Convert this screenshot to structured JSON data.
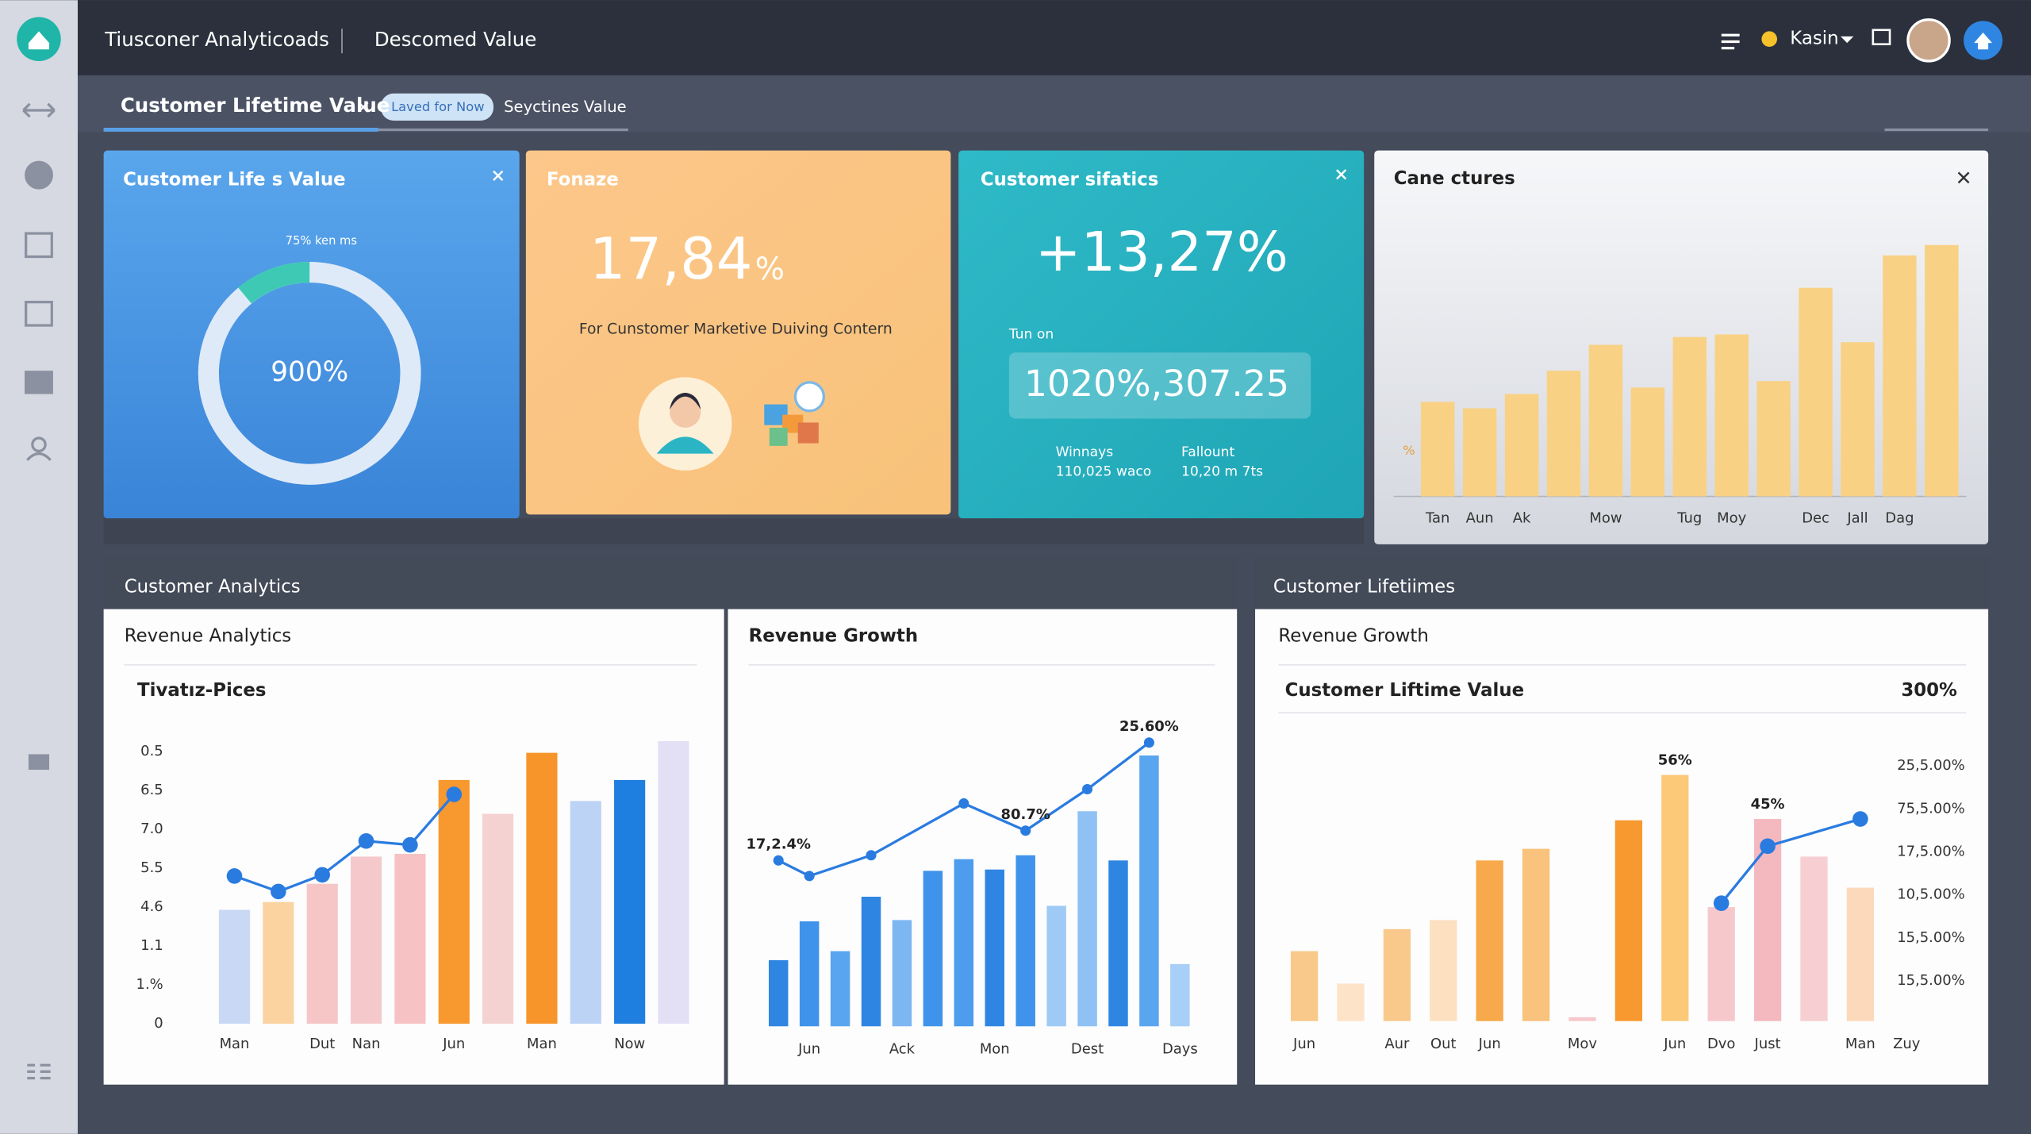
{
  "header": {
    "app_title": "Tiusconer Analyticoads",
    "section": "Descomed Value",
    "user": "Kasin"
  },
  "tabs": {
    "active": "Customer Lifetime Value",
    "pill": "Laved for Now",
    "other": "Seyctines Value"
  },
  "cards": [
    {
      "title": "Customer Life s Value",
      "caption": "75% ken ms",
      "center": "900%"
    },
    {
      "title": "Fonaze",
      "value": "17,84",
      "value_unit": "%",
      "subtitle": "For Cunstomer Marketive Duiving Contern"
    },
    {
      "title": "Customer sifatics",
      "value": "+13,27%",
      "label": "Tun on",
      "box": "1020%,307.25",
      "stats": [
        {
          "label": "Winnays",
          "value": "110,025 waco"
        },
        {
          "label": "Fallount",
          "value": "10,20 m 7ts"
        }
      ]
    },
    {
      "title": "Cane ctures",
      "chart": {
        "type": "bar",
        "axis_label": "%",
        "categories": [
          "Tan",
          "Aun",
          "Ak",
          null,
          "Mow",
          null,
          "Tug",
          "Moy",
          null,
          "Dec",
          "Jall",
          "Dag",
          null
        ],
        "values": [
          73,
          68,
          79,
          97,
          117,
          84,
          123,
          125,
          89,
          161,
          119,
          186,
          194
        ],
        "color": "#f9d184",
        "ylim": [
          0,
          200
        ]
      }
    }
  ],
  "panels": [
    {
      "title": "Customer Analytics",
      "cards": [
        {
          "title": "Revenue Analytics",
          "subtitle": "Tivatız-Pices",
          "type": "bar",
          "categories": [
            "Man",
            null,
            "Dut",
            "Nan",
            null,
            "Jun",
            null,
            "Man",
            null,
            "Now",
            null
          ],
          "values": [
            2.93,
            3.13,
            3.6,
            4.3,
            4.37,
            6.27,
            5.4,
            6.97,
            5.73,
            6.27,
            7.27
          ],
          "colors": [
            "#c9d9f5",
            "#fbd3a0",
            "#f6c6c6",
            "#f5c9cc",
            "#f6c2c4",
            "#f7992e",
            "#f5d2d2",
            "#f7952a",
            "#bcd3f5",
            "#1f7fe0",
            "#e3e0f5"
          ],
          "ylim": [
            0,
            7
          ],
          "ytick_labels": [
            "0.5",
            "6.5",
            "7.0",
            "5.5",
            "4.6",
            "1.1",
            "1.%",
            "0"
          ],
          "line": {
            "color": "#2a7be0",
            "x": [
              0,
              1,
              2,
              3,
              4,
              5
            ],
            "values": [
              3.8,
              3.4,
              3.83,
              4.7,
              4.6,
              5.9
            ]
          }
        },
        {
          "title": "Revenue Growth",
          "type": "bar",
          "categories": [
            null,
            "Jun",
            null,
            null,
            "Ack",
            null,
            null,
            "Mon",
            null,
            null,
            "Dest",
            null,
            null,
            "Days"
          ],
          "values": [
            51,
            81,
            58,
            100,
            82,
            120,
            129,
            121,
            132,
            93,
            166,
            128,
            209,
            48
          ],
          "colors": [
            "#2f86e2",
            "#3f93ea",
            "#5aa5ef",
            "#2f86e2",
            "#7db7f2",
            "#3f93ea",
            "#4d9cee",
            "#2f86e2",
            "#3f93ea",
            "#9fcaf5",
            "#8fc1f4",
            "#2f86e2",
            "#5aa5ef",
            "#a8cff6"
          ],
          "ylim": [
            0,
            230
          ],
          "line": {
            "color": "#2a7be0",
            "x": [
              0,
              1,
              3,
              6,
              8,
              10,
              12
            ],
            "values": [
              128,
              116,
              132,
              172,
              151,
              183,
              219
            ],
            "labels": [
              "17,2.4%",
              null,
              null,
              null,
              "80.7%",
              null,
              "25.60%"
            ]
          }
        }
      ]
    },
    {
      "title": "Customer Lifetiimes",
      "cards": [
        {
          "title": "Revenue Growth",
          "subtitle": "Customer Liftime Value",
          "headline": "300%",
          "type": "bar",
          "categories": [
            "Jun",
            null,
            "Aur",
            "Out",
            "Jun",
            null,
            "Mov",
            null,
            "Jun",
            "Dvo",
            "Just",
            null,
            "Man",
            "Zuy"
          ],
          "values": [
            54,
            29,
            71,
            78,
            124,
            133,
            3,
            155,
            190,
            88,
            156,
            127,
            103,
            null
          ],
          "colors": [
            "#f8c98a",
            "#fde3c8",
            "#f9c98c",
            "#fde0c0",
            "#f7a94b",
            "#f9c27d",
            "#f6c8cc",
            "#f7992e",
            "#fbc978",
            "#f6c8cc",
            "#f4b9bf",
            "#f7cfd3",
            "#fdd9bb",
            null
          ],
          "bar_labels": [
            null,
            null,
            null,
            null,
            null,
            null,
            null,
            null,
            "56%",
            null,
            "45%",
            null,
            null,
            null
          ],
          "ylim": [
            0,
            200
          ],
          "ytick_labels": [
            "25,5.00%",
            "75,5.00%",
            "17,5.00%",
            "10,5.00%",
            "15,5.00%",
            "15,5.00%"
          ],
          "line": {
            "color": "#2a7be0",
            "x": [
              9,
              10,
              12
            ],
            "values": [
              91,
              135,
              156
            ]
          }
        }
      ]
    }
  ]
}
